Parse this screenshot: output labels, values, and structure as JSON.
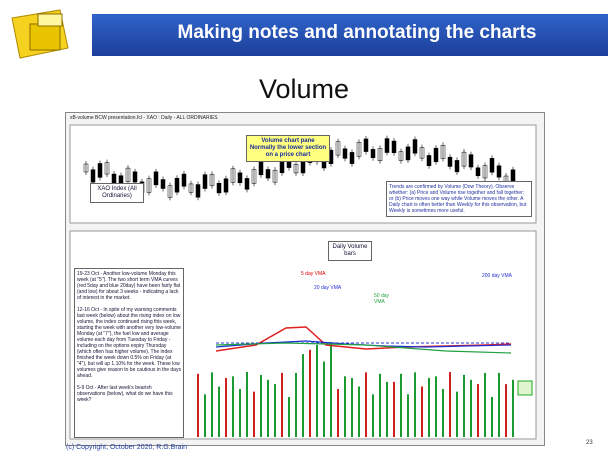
{
  "header": {
    "title": "Making notes and annotating the charts"
  },
  "slide": {
    "heading": "Volume",
    "page_number": "23"
  },
  "screenshot": {
    "window_title": "xB-volume BCW presentation.fcl - XAO : Daily - ALL ORDINARIES",
    "pane_note": "Volume chart pane Normally the lower section on a price chart",
    "index_label": "XAO Index (All Ordinaries)",
    "volume_label": "Daily Volume bars",
    "trend_note": "Trends are confirmed by Volume (Dow Theory). Observe whether: (a) Price and Volume rise together and fall together; or (b) Price moves one way while Volume moves the other. A Daily chart is often better than Weekly for this observation, but Weekly is sometimes more useful.",
    "vma_labels": [
      "5 day VMA",
      "20 day VMA",
      "50 day VMA",
      "200 day VMA"
    ],
    "left_notes": [
      "19-23 Oct - Another low-volume Monday this week (at \"5\"). The two short term VMA curves (red 5day and blue 20day) have been fairly flat (and low) for about 3 weeks - indicating a lack of interest in the market.",
      "12-16 Oct - In spite of my warning comments last week (below) about the rising index on low volume, the index continued rising this week, starting the week with another very low-volume Monday (at \"7\"), the fuel low and average volume each day from Tuesday to Friday - including on the options expiry Thursday (which often has higher volume). The index finished the week down 0.5% on Friday (at \"4\"), but will up 1.10% for the week. These low volumes give reason to be cautious in the days ahead.",
      "5-9 Oct - After last week's bearish observations (below), what do we have this week?"
    ]
  },
  "footer": {
    "copyright": "(c) Copyright, October 2020, R.G.Brain"
  }
}
